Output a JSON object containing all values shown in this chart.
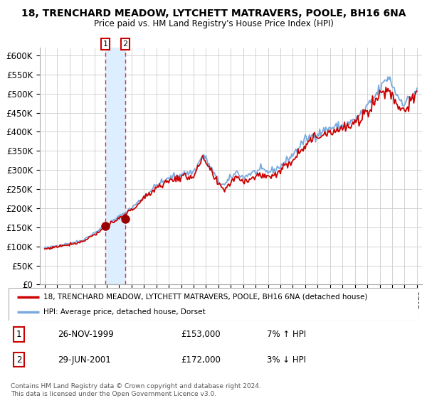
{
  "title1": "18, TRENCHARD MEADOW, LYTCHETT MATRAVERS, POOLE, BH16 6NA",
  "title2": "Price paid vs. HM Land Registry's House Price Index (HPI)",
  "legend_line1": "18, TRENCHARD MEADOW, LYTCHETT MATRAVERS, POOLE, BH16 6NA (detached house)",
  "legend_line2": "HPI: Average price, detached house, Dorset",
  "footer1": "Contains HM Land Registry data © Crown copyright and database right 2024.",
  "footer2": "This data is licensed under the Open Government Licence v3.0.",
  "transaction1_label": "1",
  "transaction1_date": "26-NOV-1999",
  "transaction1_price": "£153,000",
  "transaction1_hpi": "7% ↑ HPI",
  "transaction2_label": "2",
  "transaction2_date": "29-JUN-2001",
  "transaction2_price": "£172,000",
  "transaction2_hpi": "3% ↓ HPI",
  "ylim": [
    0,
    620000
  ],
  "yticks": [
    0,
    50000,
    100000,
    150000,
    200000,
    250000,
    300000,
    350000,
    400000,
    450000,
    500000,
    550000,
    600000
  ],
  "xlim_start": 1994.6,
  "xlim_end": 2025.4,
  "hpi_color": "#7aaadd",
  "price_color": "#cc0000",
  "marker_color": "#990000",
  "vspan_color": "#ddeeff",
  "vline_color": "#dd3333",
  "grid_color": "#cccccc",
  "bg_color": "#ffffff",
  "transaction1_x": 1999.9,
  "transaction1_y": 153000,
  "transaction2_x": 2001.5,
  "transaction2_y": 172000
}
